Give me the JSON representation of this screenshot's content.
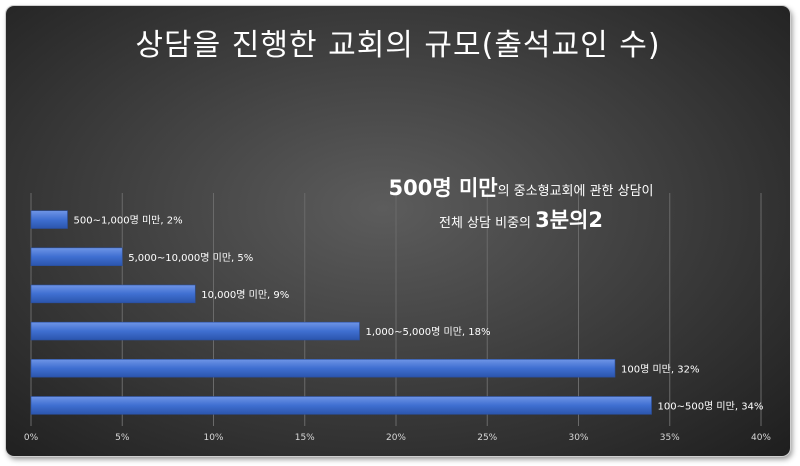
{
  "title": "상담을 진행한 교회의 규모(출석교인 수)",
  "annotation": {
    "line1": [
      {
        "text": "500명 미만",
        "size": "big"
      },
      {
        "text": "의 중소형교회에 관한 상담이",
        "size": "small"
      }
    ],
    "line2": [
      {
        "text": "전체 상담 비중의 ",
        "size": "small"
      },
      {
        "text": "3분의2",
        "size": "big"
      }
    ]
  },
  "chart_data": {
    "type": "bar",
    "orientation": "horizontal",
    "title": "상담을 진행한 교회의 규모(출석교인 수)",
    "categories": [
      "500~1,000명 미만",
      "5,000~10,000명 미만",
      "10,000명 미만",
      "1,000~5,000명 미만",
      "100명 미만",
      "100~500명 미만"
    ],
    "values": [
      2,
      5,
      9,
      18,
      32,
      34
    ],
    "data_labels": [
      "500~1,000명 미만, 2%",
      "5,000~10,000명 미만, 5%",
      "10,000명 미만, 9%",
      "1,000~5,000명 미만, 18%",
      "100명 미만, 32%",
      "100~500명 미만, 34%"
    ],
    "xlim": [
      0,
      40
    ],
    "x_ticks": [
      "0%",
      "5%",
      "10%",
      "15%",
      "20%",
      "25%",
      "30%",
      "35%",
      "40%"
    ],
    "grid": true,
    "bar_color": "#3f6fd1"
  }
}
